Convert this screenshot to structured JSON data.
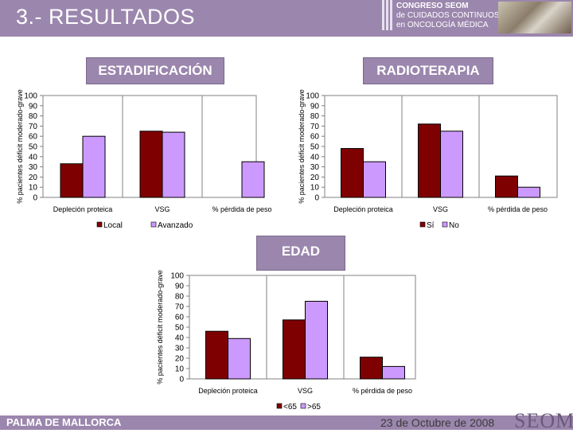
{
  "header": {
    "title": "3.- RESULTADOS",
    "logo_lines": [
      "CONGRESO SEOM",
      "de CUIDADOS CONTINUOS",
      "en ONCOLOGÍA MÉDICA"
    ]
  },
  "footer": {
    "location": "PALMA DE MALLORCA",
    "date": "23 de Octubre de 2008",
    "logo": "SEOM"
  },
  "colors": {
    "header": "#9b86ad",
    "series1": "#7f0000",
    "series2": "#cc99ff"
  },
  "chart_data": [
    {
      "id": "estadificacion",
      "type": "bar",
      "title": "ESTADIFICACIÓN",
      "ylabel": "% pacientes déficit moderado-grave",
      "ylim": [
        0,
        100
      ],
      "yticks": [
        "0",
        "10",
        "20",
        "30",
        "40",
        "50",
        "60",
        "70",
        "80",
        "90",
        "100"
      ],
      "categories": [
        "Depleción proteica",
        "VSG",
        "% pérdida de peso"
      ],
      "series": [
        {
          "name": "Local",
          "values": [
            33,
            65,
            null
          ]
        },
        {
          "name": "Avanzado",
          "values": [
            60,
            64,
            35
          ]
        }
      ]
    },
    {
      "id": "radioterapia",
      "type": "bar",
      "title": "RADIOTERAPIA",
      "ylabel": "% pacientes déficit moderado-grave",
      "ylim": [
        0,
        100
      ],
      "yticks": [
        "0",
        "10",
        "20",
        "30",
        "40",
        "50",
        "60",
        "70",
        "80",
        "90",
        "100"
      ],
      "categories": [
        "Depleción proteica",
        "VSG",
        "% pérdida de peso"
      ],
      "series": [
        {
          "name": "Sí",
          "values": [
            48,
            72,
            21
          ]
        },
        {
          "name": "No",
          "values": [
            35,
            65,
            10
          ]
        }
      ]
    },
    {
      "id": "edad",
      "type": "bar",
      "title": "EDAD",
      "ylabel": "% pacientes déficit moderado-grave",
      "ylim": [
        0,
        100
      ],
      "yticks": [
        "0",
        "10",
        "20",
        "30",
        "40",
        "50",
        "60",
        "70",
        "80",
        "90",
        "100"
      ],
      "categories": [
        "Depleción proteica",
        "VSG",
        "% pérdida de peso"
      ],
      "series": [
        {
          "name": "<65",
          "values": [
            46,
            57,
            21
          ]
        },
        {
          "name": ">65",
          "values": [
            39,
            75,
            12
          ]
        }
      ]
    }
  ]
}
